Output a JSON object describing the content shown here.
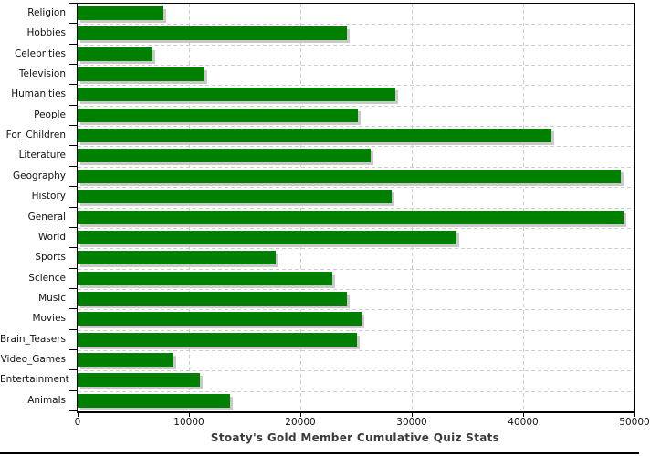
{
  "window": {
    "background": "#ffffff"
  },
  "chart_data": {
    "type": "bar",
    "orientation": "horizontal",
    "title": "Stoaty's Gold Member Cumulative Quiz Stats",
    "categories": [
      "Religion",
      "Hobbies",
      "Celebrities",
      "Television",
      "Humanities",
      "People",
      "For_Children",
      "Literature",
      "Geography",
      "History",
      "General",
      "World",
      "Sports",
      "Science",
      "Music",
      "Movies",
      "Brain_Teasers",
      "Video_Games",
      "Entertainment",
      "Animals"
    ],
    "values": [
      7700,
      24200,
      6700,
      11400,
      28500,
      25200,
      42500,
      26300,
      48800,
      28200,
      49000,
      34000,
      17800,
      22900,
      24200,
      25500,
      25100,
      8600,
      11000,
      13700
    ],
    "xlabel": "",
    "ylabel": "",
    "xlim": [
      0,
      50000
    ],
    "x_ticks": [
      0,
      10000,
      20000,
      30000,
      40000,
      50000
    ],
    "x_tick_labels": [
      "0",
      "10000",
      "20000",
      "30000",
      "40000",
      "50000"
    ],
    "grid": "dashed",
    "legend": "none",
    "colors": {
      "bar": "#008000",
      "bar_shadow": "#c9c9c9",
      "gridline": "#cdcdcd",
      "axis": "#000000",
      "tick_label": "#111111",
      "title": "#3a3a3a"
    }
  }
}
